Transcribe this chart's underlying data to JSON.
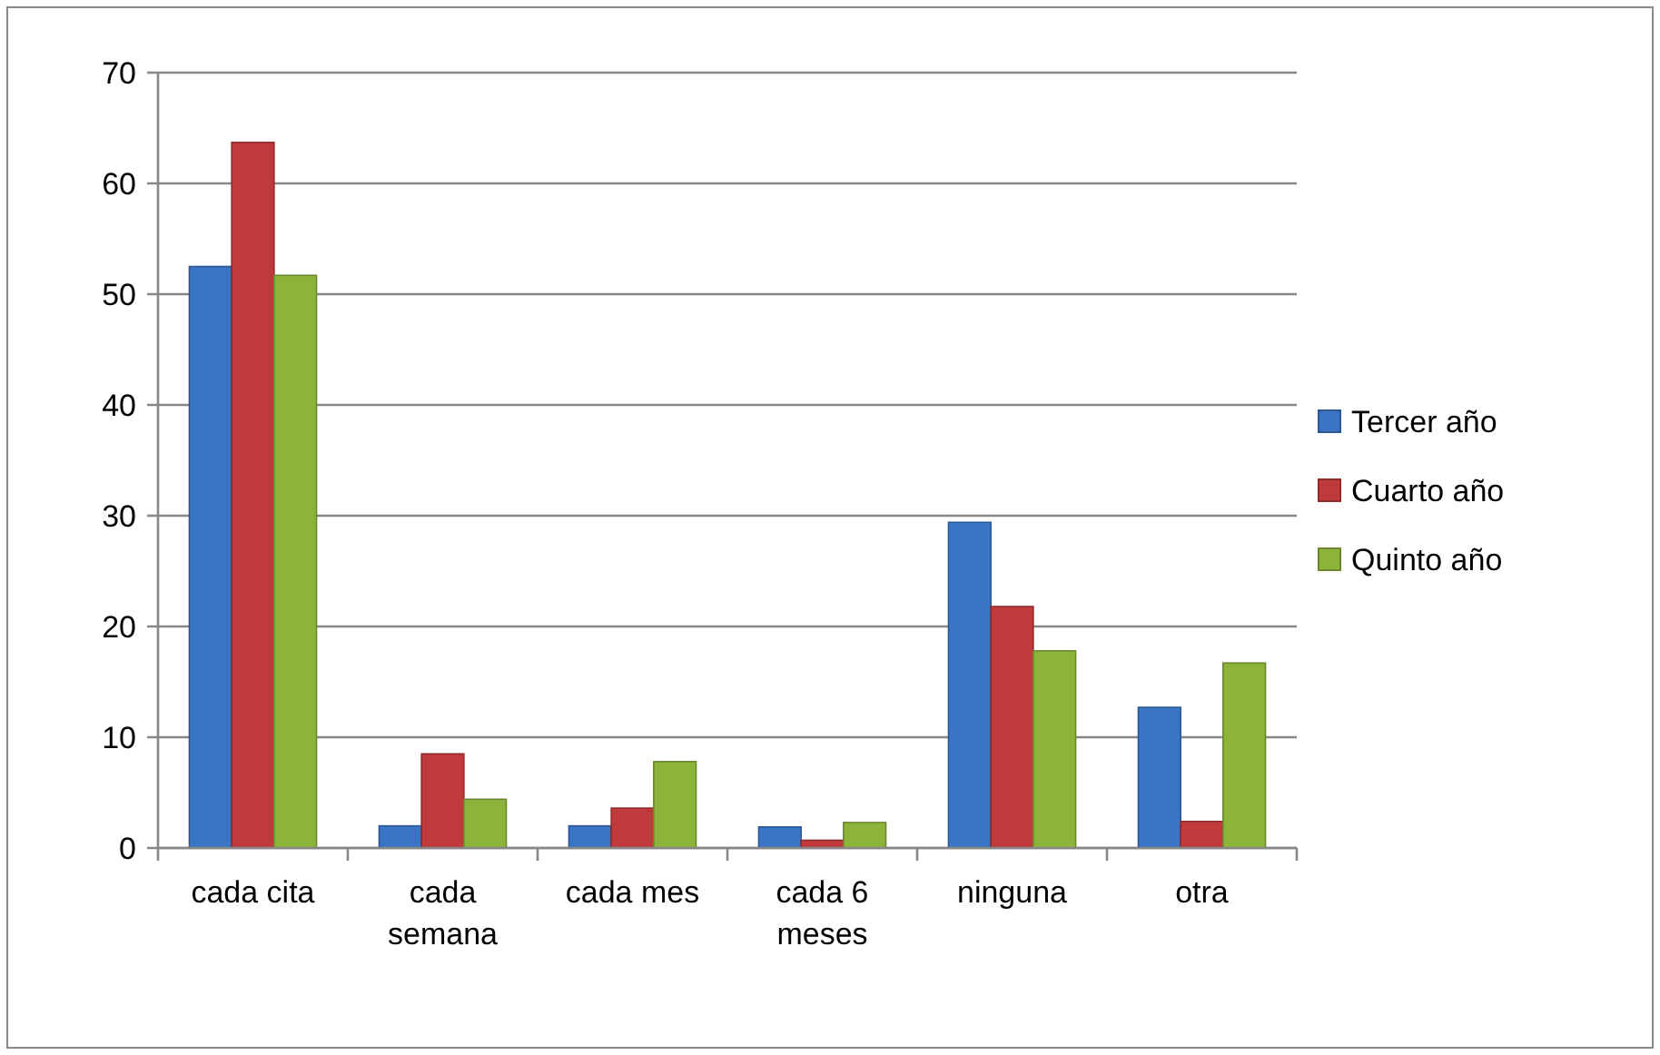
{
  "chart_data": {
    "type": "bar",
    "categories": [
      "cada cita",
      "cada semana",
      "cada mes",
      "cada 6 meses",
      "ninguna",
      "otra"
    ],
    "series": [
      {
        "name": "Tercer año",
        "color": "#3a74c4",
        "values": [
          52.5,
          2.0,
          2.0,
          1.9,
          29.4,
          12.7
        ]
      },
      {
        "name": "Cuarto año",
        "color": "#c0393b",
        "values": [
          63.7,
          8.5,
          3.6,
          0.7,
          21.8,
          2.4
        ]
      },
      {
        "name": "Quinto año",
        "color": "#8db43a",
        "values": [
          51.7,
          4.4,
          7.8,
          2.3,
          17.8,
          16.7
        ]
      }
    ],
    "ylim": [
      0,
      70
    ],
    "yticks": [
      0,
      10,
      20,
      30,
      40,
      50,
      60,
      70
    ],
    "grid": "y",
    "legend": "right"
  }
}
